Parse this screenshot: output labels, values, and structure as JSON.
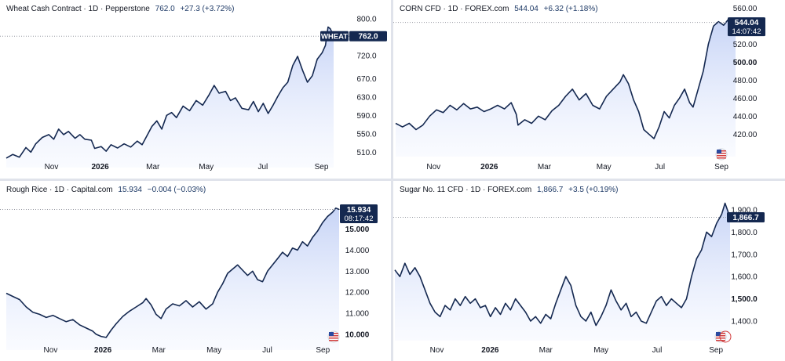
{
  "colors": {
    "line": "#142850",
    "fill_top": "#c7d4f6",
    "fill_bottom": "#f4f7ff",
    "label_bg": "#142850",
    "label_text": "#ffffff",
    "axis_text": "#131722",
    "dotted": "#9598a1"
  },
  "charts": [
    {
      "legend": {
        "title": "Wheat Cash Contract · 1D · Pepperstone",
        "value": "762.0",
        "change": "+27.3 (+3.72%)"
      },
      "price_label": {
        "tag": "WHEAT",
        "value": "762.0",
        "timer": ""
      },
      "logo_icon": ""
    },
    {
      "legend": {
        "title": "CORN CFD · 1D · FOREX.com",
        "value": "544.04",
        "change": "+6.32 (+1.18%)"
      },
      "price_label": {
        "tag": "",
        "value": "544.04",
        "timer": "14:07:42"
      },
      "logo_icon": "us-flag-icon"
    },
    {
      "legend": {
        "title": "Rough Rice · 1D · Capital.com",
        "value": "15.934",
        "change": "−0.004 (−0.03%)"
      },
      "price_label": {
        "tag": "",
        "value": "15.934",
        "timer": "08:17:42"
      },
      "logo_icon": "us-flag-icon"
    },
    {
      "legend": {
        "title": "Sugar No. 11 CFD · 1D · FOREX.com",
        "value": "1,866.7",
        "change": "+3.5 (+0.19%)"
      },
      "price_label": {
        "tag": "",
        "value": "1,866.7",
        "timer": ""
      },
      "logo_icon": "us-flag-icon"
    }
  ],
  "chart_data": [
    {
      "type": "area",
      "title": "Wheat Cash Contract · 1D · Pepperstone",
      "x_ticks": [
        {
          "label": "Nov",
          "t": 0.157
        },
        {
          "label": "2026",
          "t": 0.306,
          "bold": true
        },
        {
          "label": "Mar",
          "t": 0.467
        },
        {
          "label": "May",
          "t": 0.63
        },
        {
          "label": "Jul",
          "t": 0.803
        },
        {
          "label": "Sep",
          "t": 0.982
        }
      ],
      "y_ticks": [
        {
          "label": "800.0",
          "v": 800
        },
        {
          "label": "760.0",
          "v": 760
        },
        {
          "label": "720.0",
          "v": 720
        },
        {
          "label": "670.0",
          "v": 670
        },
        {
          "label": "630.0",
          "v": 630
        },
        {
          "label": "590.0",
          "v": 590
        },
        {
          "label": "550.0",
          "v": 550
        },
        {
          "label": "510.0",
          "v": 510
        }
      ],
      "ylim": [
        490,
        810
      ],
      "last": 762.0,
      "points": [
        [
          0,
          497
        ],
        [
          0.02,
          505
        ],
        [
          0.04,
          499
        ],
        [
          0.06,
          520
        ],
        [
          0.075,
          510
        ],
        [
          0.09,
          528
        ],
        [
          0.11,
          542
        ],
        [
          0.13,
          548
        ],
        [
          0.145,
          538
        ],
        [
          0.16,
          560
        ],
        [
          0.175,
          548
        ],
        [
          0.19,
          555
        ],
        [
          0.21,
          540
        ],
        [
          0.225,
          548
        ],
        [
          0.24,
          538
        ],
        [
          0.26,
          536
        ],
        [
          0.27,
          518
        ],
        [
          0.29,
          522
        ],
        [
          0.305,
          512
        ],
        [
          0.32,
          526
        ],
        [
          0.34,
          519
        ],
        [
          0.36,
          528
        ],
        [
          0.38,
          521
        ],
        [
          0.4,
          534
        ],
        [
          0.415,
          526
        ],
        [
          0.43,
          546
        ],
        [
          0.445,
          566
        ],
        [
          0.46,
          578
        ],
        [
          0.475,
          560
        ],
        [
          0.49,
          590
        ],
        [
          0.505,
          596
        ],
        [
          0.52,
          585
        ],
        [
          0.54,
          610
        ],
        [
          0.56,
          600
        ],
        [
          0.58,
          622
        ],
        [
          0.6,
          612
        ],
        [
          0.62,
          635
        ],
        [
          0.635,
          655
        ],
        [
          0.65,
          638
        ],
        [
          0.67,
          642
        ],
        [
          0.685,
          622
        ],
        [
          0.7,
          628
        ],
        [
          0.72,
          605
        ],
        [
          0.74,
          602
        ],
        [
          0.755,
          620
        ],
        [
          0.77,
          598
        ],
        [
          0.785,
          616
        ],
        [
          0.8,
          594
        ],
        [
          0.815,
          612
        ],
        [
          0.83,
          632
        ],
        [
          0.845,
          650
        ],
        [
          0.86,
          662
        ],
        [
          0.875,
          698
        ],
        [
          0.89,
          718
        ],
        [
          0.905,
          688
        ],
        [
          0.92,
          662
        ],
        [
          0.935,
          676
        ],
        [
          0.95,
          712
        ],
        [
          0.965,
          726
        ],
        [
          0.975,
          742
        ],
        [
          0.983,
          782
        ],
        [
          0.99,
          778
        ],
        [
          1.0,
          762
        ]
      ]
    },
    {
      "type": "area",
      "title": "CORN CFD · 1D · FOREX.com",
      "x_ticks": [
        {
          "label": "Nov",
          "t": 0.13
        },
        {
          "label": "2026",
          "t": 0.294,
          "bold": true
        },
        {
          "label": "Mar",
          "t": 0.456
        },
        {
          "label": "May",
          "t": 0.631
        },
        {
          "label": "Jul",
          "t": 0.796
        },
        {
          "label": "Sep",
          "t": 0.977
        }
      ],
      "y_ticks": [
        {
          "label": "560.00",
          "v": 560
        },
        {
          "label": "520.00",
          "v": 520
        },
        {
          "label": "500.00",
          "v": 500,
          "bold": true
        },
        {
          "label": "480.00",
          "v": 480
        },
        {
          "label": "460.00",
          "v": 460
        },
        {
          "label": "440.00",
          "v": 440
        },
        {
          "label": "420.00",
          "v": 420
        }
      ],
      "ylim": [
        402,
        562
      ],
      "last": 544.04,
      "points": [
        [
          0,
          432
        ],
        [
          0.02,
          428
        ],
        [
          0.04,
          432
        ],
        [
          0.06,
          425
        ],
        [
          0.08,
          430
        ],
        [
          0.1,
          440
        ],
        [
          0.12,
          447
        ],
        [
          0.14,
          444
        ],
        [
          0.16,
          452
        ],
        [
          0.18,
          447
        ],
        [
          0.2,
          454
        ],
        [
          0.22,
          448
        ],
        [
          0.24,
          450
        ],
        [
          0.26,
          445
        ],
        [
          0.28,
          448
        ],
        [
          0.3,
          452
        ],
        [
          0.32,
          448
        ],
        [
          0.34,
          455
        ],
        [
          0.355,
          442
        ],
        [
          0.36,
          430
        ],
        [
          0.38,
          436
        ],
        [
          0.4,
          432
        ],
        [
          0.42,
          440
        ],
        [
          0.44,
          436
        ],
        [
          0.46,
          446
        ],
        [
          0.48,
          452
        ],
        [
          0.5,
          462
        ],
        [
          0.52,
          470
        ],
        [
          0.54,
          458
        ],
        [
          0.56,
          465
        ],
        [
          0.58,
          452
        ],
        [
          0.6,
          448
        ],
        [
          0.62,
          462
        ],
        [
          0.64,
          470
        ],
        [
          0.66,
          478
        ],
        [
          0.67,
          486
        ],
        [
          0.685,
          476
        ],
        [
          0.7,
          458
        ],
        [
          0.715,
          445
        ],
        [
          0.73,
          425
        ],
        [
          0.745,
          420
        ],
        [
          0.76,
          415
        ],
        [
          0.775,
          428
        ],
        [
          0.79,
          445
        ],
        [
          0.805,
          438
        ],
        [
          0.82,
          452
        ],
        [
          0.835,
          460
        ],
        [
          0.85,
          470
        ],
        [
          0.865,
          455
        ],
        [
          0.875,
          450
        ],
        [
          0.89,
          470
        ],
        [
          0.905,
          490
        ],
        [
          0.92,
          520
        ],
        [
          0.935,
          540
        ],
        [
          0.95,
          545
        ],
        [
          0.965,
          541
        ],
        [
          0.98,
          548
        ],
        [
          1.0,
          544.04
        ]
      ]
    },
    {
      "type": "area",
      "title": "Rough Rice · 1D · Capital.com",
      "x_ticks": [
        {
          "label": "Nov",
          "t": 0.152
        },
        {
          "label": "2026",
          "t": 0.309,
          "bold": true
        },
        {
          "label": "Mar",
          "t": 0.477
        },
        {
          "label": "May",
          "t": 0.643
        },
        {
          "label": "Jul",
          "t": 0.803
        },
        {
          "label": "Sep",
          "t": 0.97
        }
      ],
      "y_ticks": [
        {
          "label": "15.000",
          "v": 15,
          "bold": true
        },
        {
          "label": "14.000",
          "v": 14
        },
        {
          "label": "13.000",
          "v": 13
        },
        {
          "label": "12.000",
          "v": 12
        },
        {
          "label": "11.000",
          "v": 11
        },
        {
          "label": "10.000",
          "v": 10,
          "bold": true
        }
      ],
      "ylim": [
        9.55,
        16.25
      ],
      "last": 15.934,
      "points": [
        [
          0,
          11.95
        ],
        [
          0.02,
          11.8
        ],
        [
          0.04,
          11.65
        ],
        [
          0.06,
          11.3
        ],
        [
          0.08,
          11.05
        ],
        [
          0.1,
          10.95
        ],
        [
          0.12,
          10.8
        ],
        [
          0.14,
          10.9
        ],
        [
          0.16,
          10.75
        ],
        [
          0.18,
          10.6
        ],
        [
          0.2,
          10.7
        ],
        [
          0.22,
          10.45
        ],
        [
          0.24,
          10.3
        ],
        [
          0.26,
          10.15
        ],
        [
          0.27,
          10.0
        ],
        [
          0.285,
          9.9
        ],
        [
          0.3,
          9.85
        ],
        [
          0.315,
          10.2
        ],
        [
          0.33,
          10.5
        ],
        [
          0.35,
          10.85
        ],
        [
          0.37,
          11.1
        ],
        [
          0.39,
          11.3
        ],
        [
          0.41,
          11.5
        ],
        [
          0.42,
          11.7
        ],
        [
          0.435,
          11.4
        ],
        [
          0.45,
          10.95
        ],
        [
          0.465,
          10.75
        ],
        [
          0.48,
          11.2
        ],
        [
          0.5,
          11.45
        ],
        [
          0.52,
          11.35
        ],
        [
          0.54,
          11.6
        ],
        [
          0.56,
          11.3
        ],
        [
          0.58,
          11.55
        ],
        [
          0.6,
          11.2
        ],
        [
          0.62,
          11.45
        ],
        [
          0.635,
          12.0
        ],
        [
          0.65,
          12.4
        ],
        [
          0.665,
          12.9
        ],
        [
          0.68,
          13.1
        ],
        [
          0.695,
          13.3
        ],
        [
          0.71,
          13.05
        ],
        [
          0.725,
          12.8
        ],
        [
          0.74,
          13.0
        ],
        [
          0.755,
          12.6
        ],
        [
          0.77,
          12.5
        ],
        [
          0.785,
          13.0
        ],
        [
          0.8,
          13.3
        ],
        [
          0.815,
          13.6
        ],
        [
          0.83,
          13.9
        ],
        [
          0.845,
          13.7
        ],
        [
          0.86,
          14.1
        ],
        [
          0.875,
          14.0
        ],
        [
          0.89,
          14.4
        ],
        [
          0.905,
          14.2
        ],
        [
          0.92,
          14.6
        ],
        [
          0.935,
          14.9
        ],
        [
          0.95,
          15.3
        ],
        [
          0.965,
          15.6
        ],
        [
          0.98,
          15.8
        ],
        [
          0.99,
          16.0
        ],
        [
          1.0,
          15.934
        ]
      ]
    },
    {
      "type": "area",
      "title": "Sugar No. 11 CFD · 1D · FOREX.com",
      "x_ticks": [
        {
          "label": "Nov",
          "t": 0.144
        },
        {
          "label": "2026",
          "t": 0.303,
          "bold": true
        },
        {
          "label": "Mar",
          "t": 0.469
        },
        {
          "label": "May",
          "t": 0.634
        },
        {
          "label": "Jul",
          "t": 0.801
        },
        {
          "label": "Sep",
          "t": 0.977
        }
      ],
      "y_ticks": [
        {
          "label": "1,900.0",
          "v": 1900
        },
        {
          "label": "1,800.0",
          "v": 1800
        },
        {
          "label": "1,700.0",
          "v": 1700
        },
        {
          "label": "1,600.0",
          "v": 1600
        },
        {
          "label": "1,500.0",
          "v": 1500,
          "bold": true
        },
        {
          "label": "1,400.0",
          "v": 1400
        }
      ],
      "ylim": [
        1340,
        1960
      ],
      "last": 1866.7,
      "points": [
        [
          0,
          1630
        ],
        [
          0.015,
          1600
        ],
        [
          0.03,
          1660
        ],
        [
          0.045,
          1610
        ],
        [
          0.06,
          1640
        ],
        [
          0.075,
          1600
        ],
        [
          0.09,
          1540
        ],
        [
          0.105,
          1480
        ],
        [
          0.12,
          1440
        ],
        [
          0.135,
          1420
        ],
        [
          0.15,
          1470
        ],
        [
          0.165,
          1450
        ],
        [
          0.18,
          1500
        ],
        [
          0.195,
          1470
        ],
        [
          0.21,
          1510
        ],
        [
          0.225,
          1480
        ],
        [
          0.24,
          1500
        ],
        [
          0.255,
          1460
        ],
        [
          0.27,
          1470
        ],
        [
          0.285,
          1420
        ],
        [
          0.3,
          1460
        ],
        [
          0.315,
          1430
        ],
        [
          0.33,
          1480
        ],
        [
          0.345,
          1450
        ],
        [
          0.36,
          1500
        ],
        [
          0.375,
          1470
        ],
        [
          0.39,
          1440
        ],
        [
          0.405,
          1400
        ],
        [
          0.42,
          1420
        ],
        [
          0.435,
          1390
        ],
        [
          0.45,
          1430
        ],
        [
          0.465,
          1410
        ],
        [
          0.48,
          1480
        ],
        [
          0.495,
          1540
        ],
        [
          0.51,
          1600
        ],
        [
          0.525,
          1560
        ],
        [
          0.54,
          1470
        ],
        [
          0.555,
          1420
        ],
        [
          0.57,
          1400
        ],
        [
          0.585,
          1440
        ],
        [
          0.6,
          1380
        ],
        [
          0.615,
          1420
        ],
        [
          0.63,
          1470
        ],
        [
          0.645,
          1540
        ],
        [
          0.66,
          1490
        ],
        [
          0.675,
          1450
        ],
        [
          0.69,
          1480
        ],
        [
          0.705,
          1420
        ],
        [
          0.72,
          1440
        ],
        [
          0.735,
          1400
        ],
        [
          0.75,
          1390
        ],
        [
          0.765,
          1440
        ],
        [
          0.78,
          1490
        ],
        [
          0.795,
          1510
        ],
        [
          0.81,
          1470
        ],
        [
          0.825,
          1500
        ],
        [
          0.84,
          1480
        ],
        [
          0.855,
          1460
        ],
        [
          0.87,
          1500
        ],
        [
          0.885,
          1600
        ],
        [
          0.9,
          1680
        ],
        [
          0.915,
          1720
        ],
        [
          0.93,
          1800
        ],
        [
          0.945,
          1780
        ],
        [
          0.96,
          1840
        ],
        [
          0.975,
          1880
        ],
        [
          0.985,
          1930
        ],
        [
          1.0,
          1866.7
        ]
      ]
    }
  ]
}
